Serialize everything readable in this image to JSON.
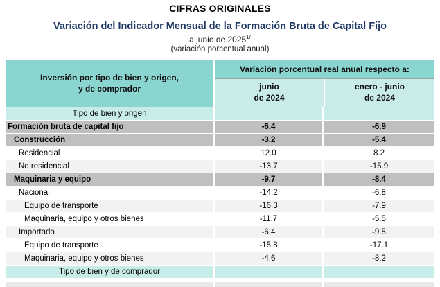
{
  "page": {
    "kicker": "CIFRAS ORIGINALES",
    "title": "Variación del Indicador Mensual de la Formación Bruta de Capital Fijo",
    "subtitle": "a junio de 2025",
    "subtitle_sup": "1/",
    "note": "(variación porcentual anual)"
  },
  "chart_data": {
    "type": "table",
    "title": "Variación del Indicador Mensual de la Formación Bruta de Capital Fijo",
    "period": "a junio de 2025 1/",
    "units": "variación porcentual anual",
    "stub_header": "Inversión por tipo de bien y origen,\ny de comprador",
    "group_header": "Variación porcentual real anual respecto a:",
    "columns": [
      "junio\nde 2024",
      "enero - junio\nde 2024"
    ],
    "rows": [
      {
        "label": "Tipo de bien y origen",
        "values": [
          "",
          ""
        ],
        "kind": "section",
        "indent": 0
      },
      {
        "label": "Formación bruta de capital fijo",
        "values": [
          "-6.4",
          "-6.9"
        ],
        "kind": "total",
        "indent": 0
      },
      {
        "label": "Construcción",
        "values": [
          "-3.2",
          "-5.4"
        ],
        "kind": "total",
        "indent": 1
      },
      {
        "label": "Residencial",
        "values": [
          "12.0",
          "8.2"
        ],
        "kind": "detail",
        "indent": 2
      },
      {
        "label": "No residencial",
        "values": [
          "-13.7",
          "-15.9"
        ],
        "kind": "detail",
        "indent": 2
      },
      {
        "label": "Maquinaria y equipo",
        "values": [
          "-9.7",
          "-8.4"
        ],
        "kind": "total",
        "indent": 1
      },
      {
        "label": "Nacional",
        "values": [
          "-14.2",
          "-6.8"
        ],
        "kind": "detail",
        "indent": 2
      },
      {
        "label": "Equipo de transporte",
        "values": [
          "-16.3",
          "-7.9"
        ],
        "kind": "detail",
        "indent": 3
      },
      {
        "label": "Maquinaria, equipo y otros bienes",
        "values": [
          "-11.7",
          "-5.5"
        ],
        "kind": "detail",
        "indent": 3
      },
      {
        "label": "Importado",
        "values": [
          "-6.4",
          "-9.5"
        ],
        "kind": "detail",
        "indent": 2
      },
      {
        "label": "Equipo de transporte",
        "values": [
          "-15.8",
          "-17.1"
        ],
        "kind": "detail",
        "indent": 3
      },
      {
        "label": "Maquinaria, equipo y otros bienes",
        "values": [
          "-4.6",
          "-8.2"
        ],
        "kind": "detail",
        "indent": 3
      },
      {
        "label": "Tipo de bien y de comprador",
        "values": [
          "",
          ""
        ],
        "kind": "section",
        "indent": 0
      }
    ]
  },
  "colors": {
    "header_teal": "#8BD5D1",
    "subheader_teal": "#CAECE9",
    "section_row_teal": "#C8EDE8",
    "total_row_gray": "#BFBFBF",
    "stripe_row_gray": "#F2F2F2",
    "title_blue": "#1F3864",
    "text_black": "#000000"
  }
}
